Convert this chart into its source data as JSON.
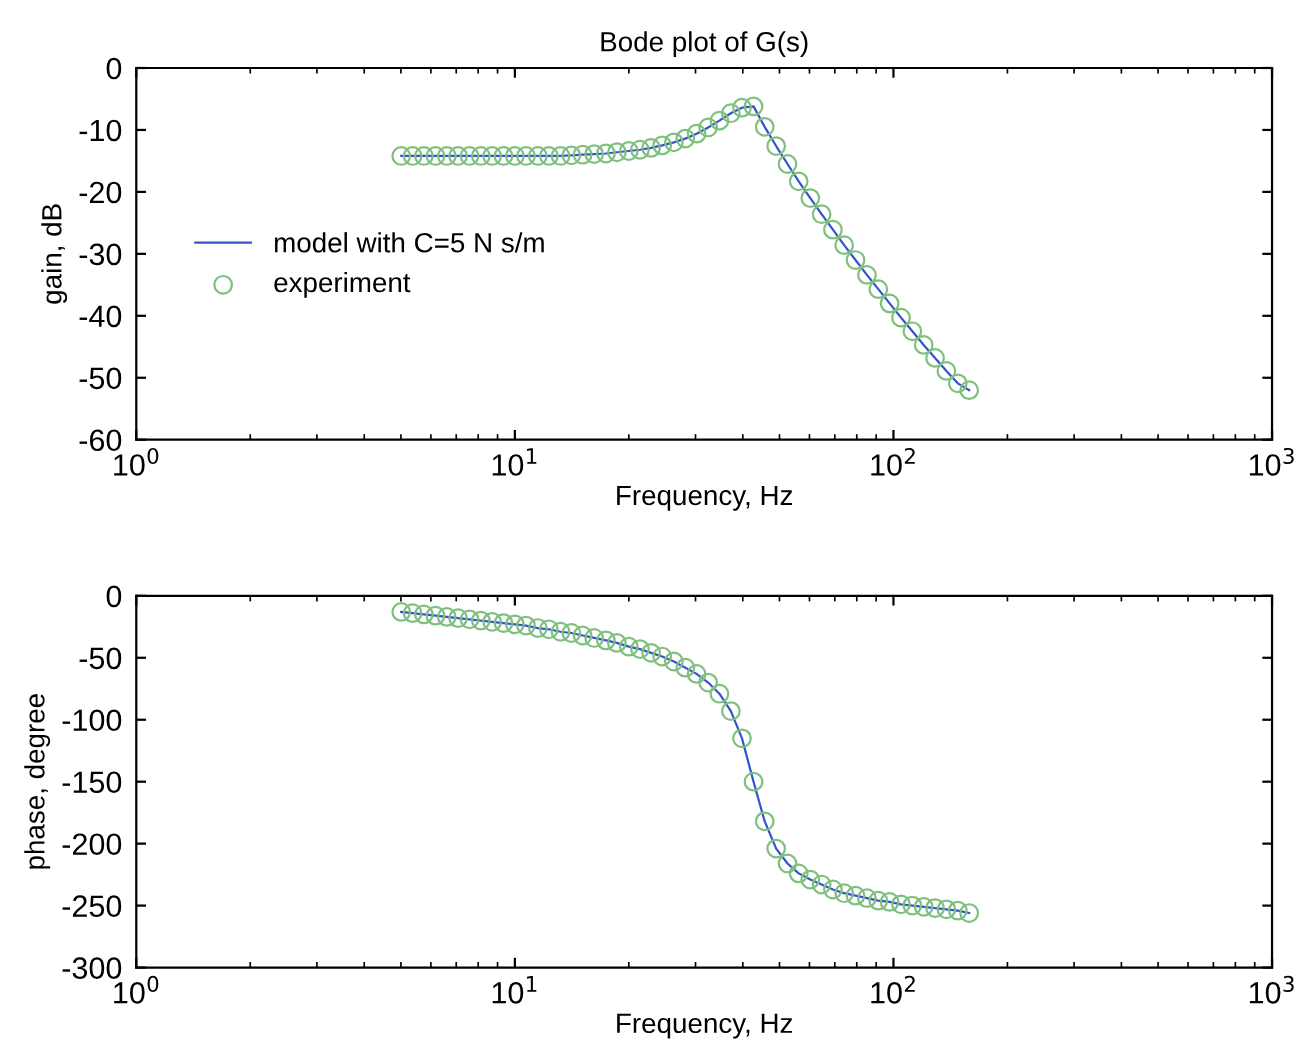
{
  "chart_data": [
    {
      "type": "line",
      "title": "Bode plot of G(s)",
      "xlabel": "Frequency, Hz",
      "ylabel": "gain, dB",
      "log": "x",
      "xlim": [
        1,
        1000
      ],
      "xticks": [
        {
          "value": 1,
          "label": "10$^{0}$"
        },
        {
          "value": 10,
          "label": "10$^{1}$"
        },
        {
          "value": 100,
          "label": "10$^{2}$"
        },
        {
          "value": 1000,
          "label": "10$^{3}$"
        }
      ],
      "ylim": [
        -60,
        0
      ],
      "yticks": [
        -60,
        -50,
        -40,
        -30,
        -20,
        -10,
        0
      ],
      "grid": false,
      "legend": "left",
      "x": [
        5.01,
        5.37,
        5.75,
        6.17,
        6.61,
        7.08,
        7.59,
        8.13,
        8.71,
        9.33,
        10.0,
        10.7,
        11.5,
        12.3,
        13.2,
        14.1,
        15.1,
        16.2,
        17.4,
        18.6,
        20.0,
        21.4,
        22.9,
        24.5,
        26.3,
        28.2,
        30.2,
        32.4,
        34.7,
        37.2,
        39.8,
        42.7,
        45.7,
        49.0,
        52.5,
        56.2,
        60.3,
        64.6,
        69.2,
        74.1,
        79.4,
        85.1,
        91.2,
        97.7,
        104.7,
        112.2,
        120.2,
        128.8,
        138.0,
        147.9,
        158.5
      ],
      "series": [
        {
          "name": "model with C=5 N s/m",
          "color": "#3355cc",
          "marker": "none",
          "line_style": "solid",
          "values": [
            -14.2,
            -14.2,
            -14.2,
            -14.2,
            -14.2,
            -14.2,
            -14.2,
            -14.2,
            -14.2,
            -14.2,
            -14.2,
            -14.2,
            -14.2,
            -14.2,
            -14.2,
            -14.1,
            -14.0,
            -13.9,
            -13.8,
            -13.6,
            -13.4,
            -13.2,
            -12.9,
            -12.5,
            -12.0,
            -11.4,
            -10.6,
            -9.6,
            -8.5,
            -7.3,
            -6.4,
            -6.2,
            -9.5,
            -12.6,
            -15.5,
            -18.3,
            -21.0,
            -23.6,
            -26.1,
            -28.6,
            -31.0,
            -33.4,
            -35.7,
            -38.0,
            -40.3,
            -42.5,
            -44.7,
            -46.8,
            -48.9,
            -50.9,
            -52.0
          ]
        },
        {
          "name": "experiment",
          "type": "scatter",
          "color": "#7fbf7f",
          "marker": "circle",
          "values": [
            -14.2,
            -14.2,
            -14.2,
            -14.2,
            -14.2,
            -14.2,
            -14.2,
            -14.2,
            -14.2,
            -14.2,
            -14.2,
            -14.2,
            -14.2,
            -14.2,
            -14.2,
            -14.1,
            -14.0,
            -13.9,
            -13.8,
            -13.6,
            -13.4,
            -13.2,
            -12.9,
            -12.5,
            -12.0,
            -11.4,
            -10.6,
            -9.6,
            -8.5,
            -7.3,
            -6.4,
            -6.2,
            -9.5,
            -12.6,
            -15.5,
            -18.3,
            -21.0,
            -23.6,
            -26.1,
            -28.6,
            -31.0,
            -33.4,
            -35.7,
            -38.0,
            -40.3,
            -42.5,
            -44.7,
            -46.8,
            -48.9,
            -50.9,
            -52.0
          ]
        }
      ]
    },
    {
      "type": "line",
      "xlabel": "Frequency, Hz",
      "ylabel": "phase, degree",
      "log": "x",
      "xlim": [
        1,
        1000
      ],
      "xticks": [
        {
          "value": 1,
          "label": "10$^{0}$"
        },
        {
          "value": 10,
          "label": "10$^{1}$"
        },
        {
          "value": 100,
          "label": "10$^{2}$"
        },
        {
          "value": 1000,
          "label": "10$^{3}$"
        }
      ],
      "ylim": [
        -300,
        0
      ],
      "yticks": [
        -300,
        -250,
        -200,
        -150,
        -100,
        -50,
        0
      ],
      "grid": false,
      "x": [
        5.01,
        5.37,
        5.75,
        6.17,
        6.61,
        7.08,
        7.59,
        8.13,
        8.71,
        9.33,
        10.0,
        10.7,
        11.5,
        12.3,
        13.2,
        14.1,
        15.1,
        16.2,
        17.4,
        18.6,
        20.0,
        21.4,
        22.9,
        24.5,
        26.3,
        28.2,
        30.2,
        32.4,
        34.7,
        37.2,
        39.8,
        42.7,
        45.7,
        49.0,
        52.5,
        56.2,
        60.3,
        64.6,
        69.2,
        74.1,
        79.4,
        85.1,
        91.2,
        97.7,
        104.7,
        112.2,
        120.2,
        128.8,
        138.0,
        147.9,
        158.5
      ],
      "series": [
        {
          "color": "#3355cc",
          "marker": "none",
          "line_style": "solid",
          "values": [
            -13,
            -14,
            -15,
            -16,
            -17,
            -18,
            -19,
            -20,
            -21,
            -22,
            -23,
            -24,
            -26,
            -27,
            -29,
            -30,
            -32,
            -34,
            -36,
            -38,
            -41,
            -43,
            -46,
            -49,
            -53,
            -58,
            -63,
            -70,
            -79,
            -93,
            -115,
            -150,
            -182,
            -204,
            -216,
            -224,
            -229,
            -233,
            -237,
            -240,
            -242,
            -244,
            -246,
            -247,
            -249,
            -250,
            -251,
            -252,
            -253,
            -254,
            -256
          ]
        },
        {
          "type": "scatter",
          "color": "#7fbf7f",
          "marker": "circle",
          "values": [
            -13,
            -14,
            -15,
            -16,
            -17,
            -18,
            -19,
            -20,
            -21,
            -22,
            -23,
            -24,
            -26,
            -27,
            -29,
            -30,
            -32,
            -34,
            -36,
            -38,
            -41,
            -43,
            -46,
            -49,
            -53,
            -58,
            -63,
            -70,
            -79,
            -93,
            -115,
            -150,
            -182,
            -204,
            -216,
            -224,
            -229,
            -233,
            -237,
            -240,
            -242,
            -244,
            -246,
            -247,
            -249,
            -250,
            -251,
            -252,
            -253,
            -254,
            -256
          ]
        }
      ]
    }
  ]
}
